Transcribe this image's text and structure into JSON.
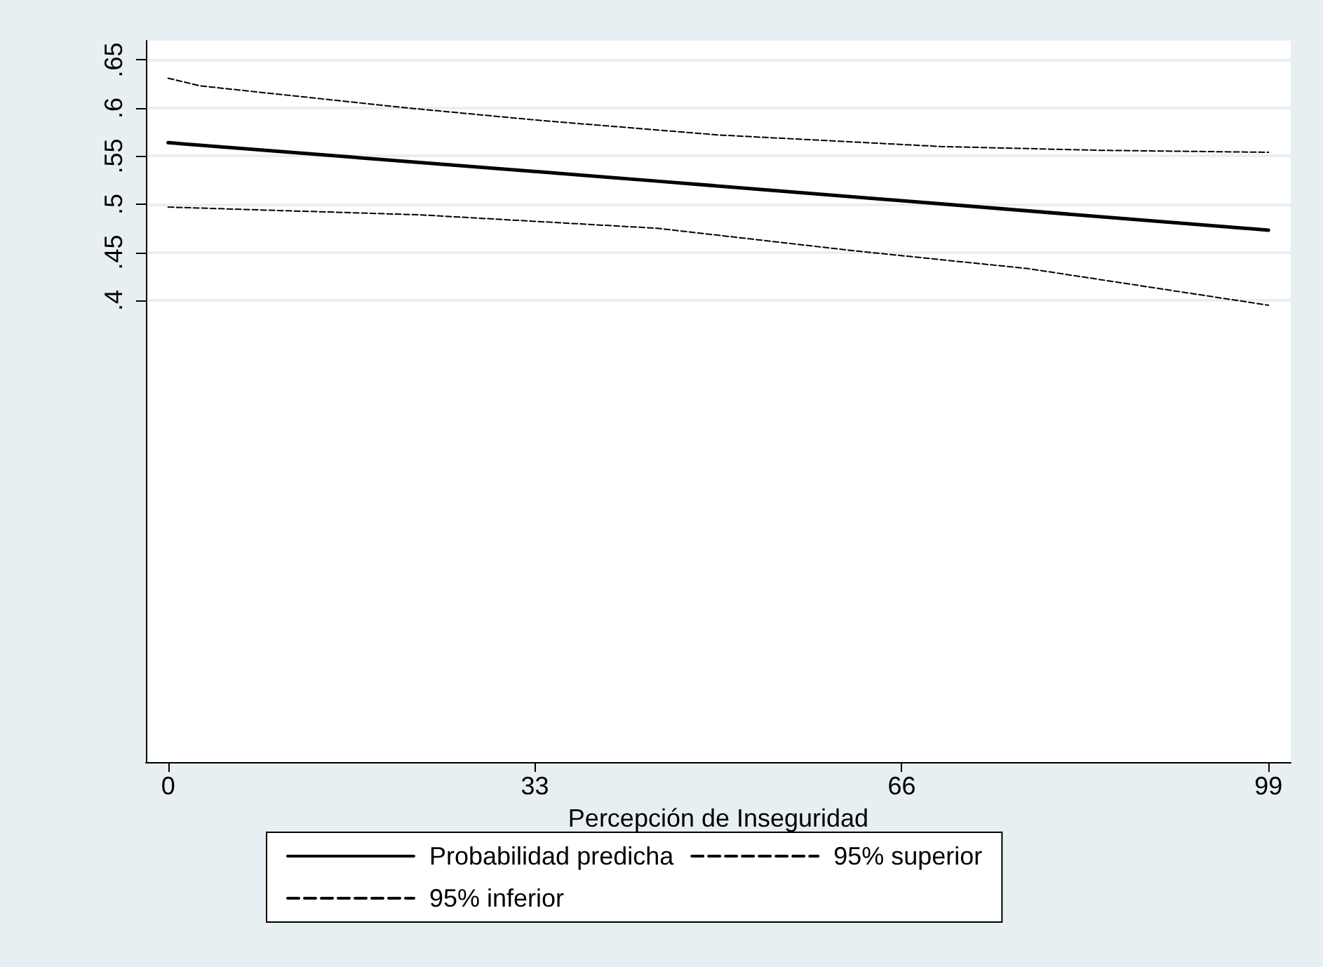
{
  "chart_data": {
    "type": "line",
    "xlabel": "Percepción de Inseguridad",
    "xlim": [
      -2,
      101
    ],
    "xticks": [
      0,
      33,
      66,
      99
    ],
    "ylim": [
      -0.08,
      0.67
    ],
    "yticks": [
      {
        "value": 0.4,
        "label": ".4"
      },
      {
        "value": 0.45,
        "label": ".45"
      },
      {
        "value": 0.5,
        "label": ".5"
      },
      {
        "value": 0.55,
        "label": ".55"
      },
      {
        "value": 0.6,
        "label": ".6"
      },
      {
        "value": 0.65,
        "label": ".65"
      }
    ],
    "grid": "y",
    "legend": "bottom",
    "marker": "none",
    "series": [
      {
        "name": "Probabilidad predicha",
        "color": "#000000",
        "line_style": "solid",
        "x": [
          0,
          44,
          99
        ],
        "values": [
          0.564,
          0.524,
          0.473
        ]
      },
      {
        "name": "95% superior",
        "color": "#000000",
        "line_style": "dashed",
        "x": [
          0,
          2.9,
          21.6,
          33.6,
          49.5,
          69.5,
          84,
          99
        ],
        "values": [
          0.631,
          0.623,
          0.6,
          0.587,
          0.572,
          0.56,
          0.556,
          0.554
        ]
      },
      {
        "name": "95% inferior",
        "color": "#000000",
        "line_style": "dashed",
        "x": [
          0,
          22.6,
          44,
          61.4,
          77.4,
          99
        ],
        "values": [
          0.497,
          0.489,
          0.475,
          0.452,
          0.433,
          0.395
        ]
      }
    ]
  }
}
